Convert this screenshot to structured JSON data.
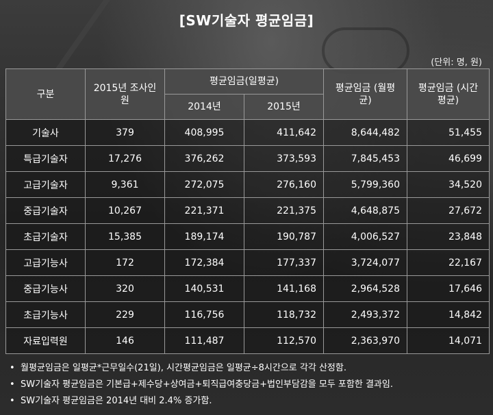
{
  "title": "[SW기술자 평균임금]",
  "unit": "(단위: 명, 원)",
  "headers": {
    "category": "구분",
    "survey_count": "2015년 조사인원",
    "daily_avg": "평균임금(일평균)",
    "year_2014": "2014년",
    "year_2015": "2015년",
    "monthly_avg": "평균임금 (월평균)",
    "hourly_avg": "평균임금 (시간평균)"
  },
  "rows": [
    {
      "name": "기술사",
      "count": "379",
      "d2014": "408,995",
      "d2015": "411,642",
      "monthly": "8,644,482",
      "hourly": "51,455"
    },
    {
      "name": "특급기술자",
      "count": "17,276",
      "d2014": "376,262",
      "d2015": "373,593",
      "monthly": "7,845,453",
      "hourly": "46,699"
    },
    {
      "name": "고급기술자",
      "count": "9,361",
      "d2014": "272,075",
      "d2015": "276,160",
      "monthly": "5,799,360",
      "hourly": "34,520"
    },
    {
      "name": "중급기술자",
      "count": "10,267",
      "d2014": "221,371",
      "d2015": "221,375",
      "monthly": "4,648,875",
      "hourly": "27,672"
    },
    {
      "name": "초급기술자",
      "count": "15,385",
      "d2014": "189,174",
      "d2015": "190,787",
      "monthly": "4,006,527",
      "hourly": "23,848"
    },
    {
      "name": "고급기능사",
      "count": "172",
      "d2014": "172,384",
      "d2015": "177,337",
      "monthly": "3,724,077",
      "hourly": "22,167"
    },
    {
      "name": "중급기능사",
      "count": "320",
      "d2014": "140,531",
      "d2015": "141,168",
      "monthly": "2,964,528",
      "hourly": "17,646"
    },
    {
      "name": "초급기능사",
      "count": "229",
      "d2014": "116,756",
      "d2015": "118,732",
      "monthly": "2,493,372",
      "hourly": "14,842"
    },
    {
      "name": "자료입력원",
      "count": "146",
      "d2014": "111,487",
      "d2015": "112,570",
      "monthly": "2,363,970",
      "hourly": "14,071"
    }
  ],
  "notes": [
    "월평균임금은 일평균*근무일수(21일), 시간평균임금은 일평균÷8시간으로 각각 산정함.",
    "SW기술자 평균임금은 기본급+제수당+상여금+퇴직급여충당금+법인부담감을 모두 포함한 결과임.",
    "SW기술자 평균임금은 2014년 대비 2.4% 증가함."
  ],
  "bullet": "•"
}
